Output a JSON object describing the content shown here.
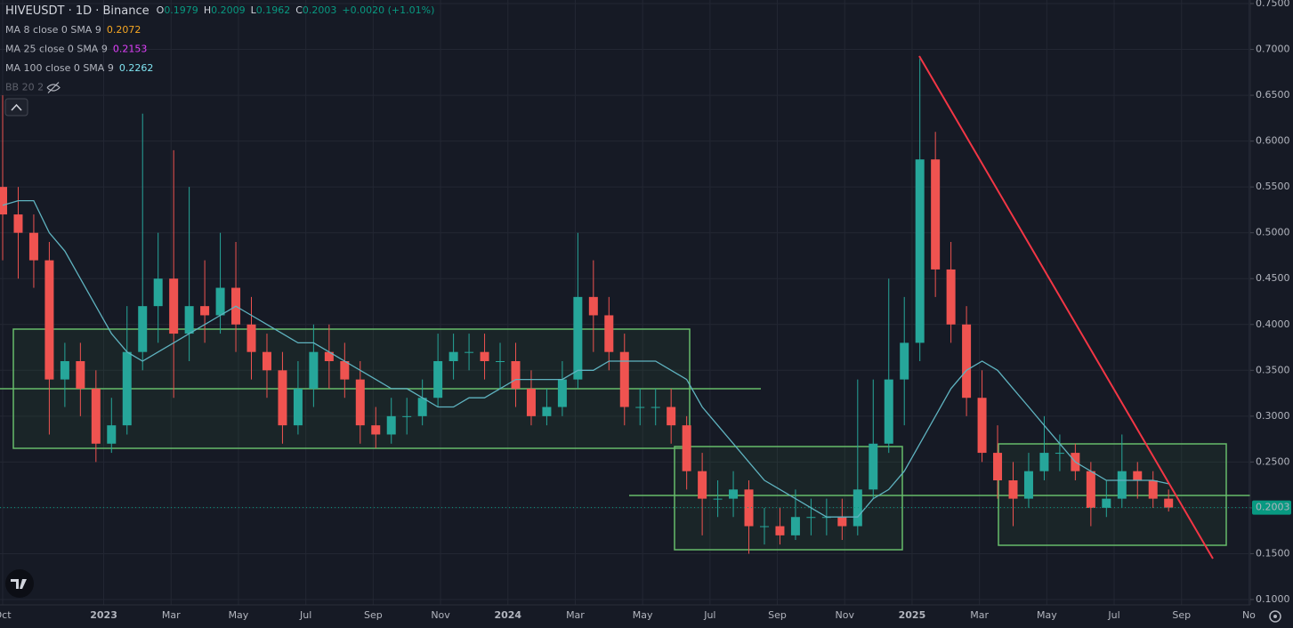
{
  "header": {
    "symbol": "HIVEUSDT · 1D · Binance",
    "ohlc": [
      {
        "label": "O",
        "value": 0.1979
      },
      {
        "label": "H",
        "value": 0.2009
      },
      {
        "label": "L",
        "value": 0.1962
      },
      {
        "label": "C",
        "value": 0.2003
      }
    ],
    "change": "+0.0020 (+1.01%)"
  },
  "indicators": [
    {
      "name": "MA 8 close 0 SMA 9",
      "value": 0.2072,
      "color": "#f5a623"
    },
    {
      "name": "MA 25 close 0 SMA 9",
      "value": 0.2153,
      "color": "#e040fb"
    },
    {
      "name": "MA 100 close 0 SMA 9",
      "value": 0.2262,
      "color": "#7fe3f0"
    },
    {
      "name": "BB 20 2"
    }
  ],
  "chart_data": {
    "type": "candlestick",
    "x_labels": [
      "Oct",
      "2023",
      "Mar",
      "May",
      "Jul",
      "Sep",
      "Nov",
      "2024",
      "Mar",
      "May",
      "Jul",
      "Sep",
      "Nov",
      "2025",
      "Mar",
      "May",
      "Jul",
      "Sep",
      "No"
    ],
    "open": [
      0.55,
      0.52,
      0.5,
      0.47,
      0.34,
      0.36,
      0.33,
      0.27,
      0.29,
      0.37,
      0.42,
      0.45,
      0.39,
      0.42,
      0.41,
      0.44,
      0.4,
      0.37,
      0.35,
      0.29,
      0.33,
      0.37,
      0.36,
      0.34,
      0.29,
      0.28,
      0.3,
      0.3,
      0.32,
      0.36,
      0.37,
      0.37,
      0.36,
      0.36,
      0.33,
      0.3,
      0.31,
      0.34,
      0.43,
      0.41,
      0.37,
      0.31,
      0.31,
      0.31,
      0.29,
      0.24,
      0.21,
      0.21,
      0.22,
      0.18,
      0.18,
      0.17,
      0.19,
      0.19,
      0.19,
      0.18,
      0.22,
      0.27,
      0.34,
      0.38,
      0.58,
      0.46,
      0.4,
      0.32,
      0.26,
      0.23,
      0.21,
      0.24,
      0.26,
      0.26,
      0.24,
      0.2,
      0.21,
      0.24,
      0.23,
      0.21
    ],
    "high": [
      0.65,
      0.55,
      0.52,
      0.49,
      0.38,
      0.38,
      0.35,
      0.32,
      0.42,
      0.63,
      0.5,
      0.59,
      0.55,
      0.47,
      0.5,
      0.49,
      0.43,
      0.39,
      0.37,
      0.36,
      0.4,
      0.4,
      0.38,
      0.36,
      0.31,
      0.32,
      0.32,
      0.34,
      0.39,
      0.39,
      0.39,
      0.39,
      0.38,
      0.38,
      0.35,
      0.33,
      0.36,
      0.5,
      0.47,
      0.43,
      0.39,
      0.33,
      0.33,
      0.33,
      0.3,
      0.26,
      0.23,
      0.24,
      0.23,
      0.2,
      0.2,
      0.22,
      0.21,
      0.21,
      0.21,
      0.34,
      0.34,
      0.45,
      0.43,
      0.69,
      0.61,
      0.49,
      0.42,
      0.35,
      0.29,
      0.25,
      0.26,
      0.3,
      0.28,
      0.27,
      0.25,
      0.23,
      0.28,
      0.25,
      0.24,
      0.22
    ],
    "low": [
      0.47,
      0.45,
      0.44,
      0.28,
      0.31,
      0.3,
      0.25,
      0.26,
      0.28,
      0.35,
      0.38,
      0.32,
      0.36,
      0.38,
      0.39,
      0.37,
      0.34,
      0.32,
      0.27,
      0.28,
      0.31,
      0.33,
      0.32,
      0.27,
      0.265,
      0.27,
      0.28,
      0.29,
      0.31,
      0.34,
      0.35,
      0.34,
      0.33,
      0.31,
      0.29,
      0.29,
      0.3,
      0.33,
      0.37,
      0.35,
      0.29,
      0.29,
      0.29,
      0.27,
      0.22,
      0.17,
      0.19,
      0.19,
      0.15,
      0.16,
      0.16,
      0.165,
      0.17,
      0.17,
      0.165,
      0.17,
      0.21,
      0.26,
      0.29,
      0.36,
      0.43,
      0.38,
      0.3,
      0.25,
      0.21,
      0.18,
      0.2,
      0.23,
      0.24,
      0.23,
      0.18,
      0.19,
      0.2,
      0.21,
      0.2,
      0.196
    ],
    "close": [
      0.52,
      0.5,
      0.47,
      0.34,
      0.36,
      0.33,
      0.27,
      0.29,
      0.37,
      0.42,
      0.45,
      0.39,
      0.42,
      0.41,
      0.44,
      0.4,
      0.37,
      0.35,
      0.29,
      0.33,
      0.37,
      0.36,
      0.34,
      0.29,
      0.28,
      0.3,
      0.3,
      0.32,
      0.36,
      0.37,
      0.37,
      0.36,
      0.36,
      0.33,
      0.3,
      0.31,
      0.34,
      0.43,
      0.41,
      0.37,
      0.31,
      0.31,
      0.31,
      0.29,
      0.24,
      0.21,
      0.21,
      0.22,
      0.18,
      0.18,
      0.17,
      0.19,
      0.19,
      0.19,
      0.18,
      0.22,
      0.27,
      0.34,
      0.38,
      0.58,
      0.46,
      0.4,
      0.32,
      0.26,
      0.23,
      0.21,
      0.24,
      0.26,
      0.26,
      0.24,
      0.2,
      0.21,
      0.24,
      0.23,
      0.21,
      0.2003
    ],
    "ma100": {
      "color": "#5fb3c0",
      "values": [
        0.53,
        0.535,
        0.535,
        0.5,
        0.48,
        0.45,
        0.42,
        0.39,
        0.37,
        0.36,
        0.37,
        0.38,
        0.39,
        0.4,
        0.41,
        0.42,
        0.41,
        0.4,
        0.39,
        0.38,
        0.38,
        0.37,
        0.36,
        0.35,
        0.34,
        0.33,
        0.33,
        0.32,
        0.31,
        0.31,
        0.32,
        0.32,
        0.33,
        0.34,
        0.34,
        0.34,
        0.34,
        0.35,
        0.35,
        0.36,
        0.36,
        0.36,
        0.36,
        0.35,
        0.34,
        0.31,
        0.29,
        0.27,
        0.25,
        0.23,
        0.22,
        0.21,
        0.2,
        0.19,
        0.19,
        0.19,
        0.21,
        0.22,
        0.24,
        0.27,
        0.3,
        0.33,
        0.35,
        0.36,
        0.35,
        0.33,
        0.31,
        0.29,
        0.27,
        0.25,
        0.24,
        0.23,
        0.23,
        0.23,
        0.23,
        0.2262
      ]
    },
    "up_color": "#26a69a",
    "down_color": "#ef5350",
    "last_price": 0.2003,
    "last_price_color": "#089981",
    "ylim": [
      0.1,
      0.75
    ],
    "yticks": [
      {
        "value": 0.1,
        "label": "0.1000"
      },
      {
        "value": 0.15,
        "label": "0.1500"
      },
      {
        "value": 0.2,
        "label": "0.2000"
      },
      {
        "value": 0.25,
        "label": "0.2500"
      },
      {
        "value": 0.3,
        "label": "0.3000"
      },
      {
        "value": 0.35,
        "label": "0.3500"
      },
      {
        "value": 0.4,
        "label": "0.4000"
      },
      {
        "value": 0.45,
        "label": "0.4500"
      },
      {
        "value": 0.5,
        "label": "0.5000"
      },
      {
        "value": 0.55,
        "label": "0.5500"
      },
      {
        "value": 0.6,
        "label": "0.6000"
      },
      {
        "value": 0.65,
        "label": "0.6500"
      },
      {
        "value": 0.7,
        "label": "0.7000"
      },
      {
        "value": 0.75,
        "label": "0.7500"
      }
    ],
    "grid": true
  }
}
